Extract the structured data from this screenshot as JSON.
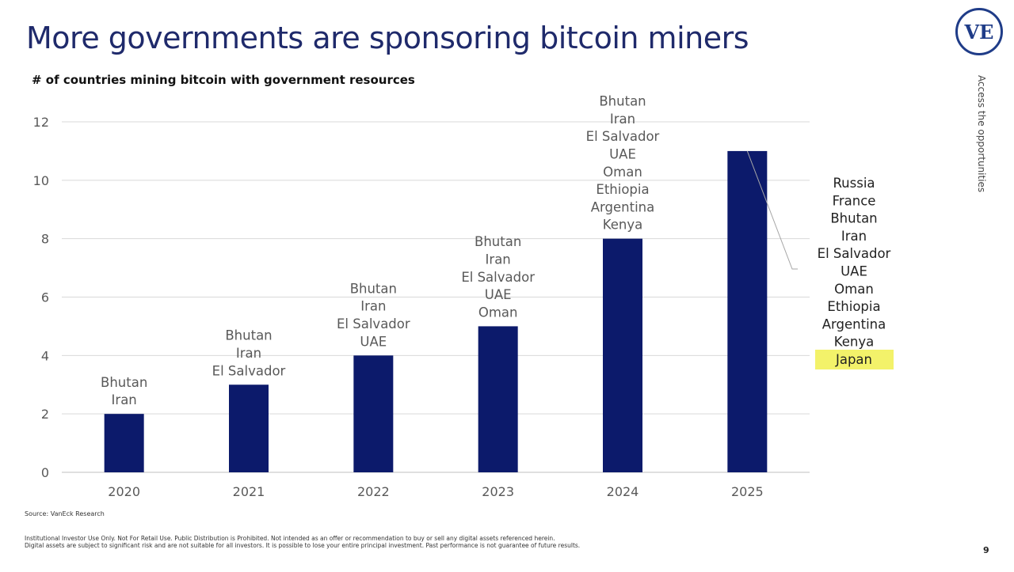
{
  "title": "More governments are sponsoring bitcoin miners",
  "logo_text": "VE",
  "tagline": "Access the opportunities",
  "source": "Source: VanEck Research",
  "disclaimer": [
    "Institutional Investor Use Only. Not For Retail Use. Public Distribution is Prohibited. Not intended as an offer or recommendation to buy or sell any digital assets referenced herein.",
    "Digital assets are subject to significant risk and are not suitable for all investors. It is possible to lose your entire principal investment. Past performance is not guarantee of future results."
  ],
  "page_number": "9",
  "colors": {
    "bar": "#0c1a6b",
    "highlight": "#f3f26a",
    "title": "#1f2a6b"
  },
  "chart_data": {
    "type": "bar",
    "title": "# of countries mining bitcoin with government resources",
    "categories": [
      "2020",
      "2021",
      "2022",
      "2023",
      "2024",
      "2025"
    ],
    "values": [
      2,
      3,
      4,
      5,
      8,
      11
    ],
    "ylim": [
      0,
      12
    ],
    "yticks": [
      0,
      2,
      4,
      6,
      8,
      10,
      12
    ],
    "grid": true,
    "data_labels": [
      [
        "Bhutan",
        "Iran"
      ],
      [
        "Bhutan",
        "Iran",
        "El Salvador"
      ],
      [
        "Bhutan",
        "Iran",
        "El Salvador",
        "UAE"
      ],
      [
        "Bhutan",
        "Iran",
        "El Salvador",
        "UAE",
        "Oman"
      ],
      [
        "Bhutan",
        "Iran",
        "El Salvador",
        "UAE",
        "Oman",
        "Ethiopia",
        "Argentina",
        "Kenya"
      ],
      [
        "Russia",
        "France",
        "Bhutan",
        "Iran",
        "El Salvador",
        "UAE",
        "Oman",
        "Ethiopia",
        "Argentina",
        "Kenya",
        "Japan"
      ]
    ],
    "highlighted_label": "Japan"
  }
}
